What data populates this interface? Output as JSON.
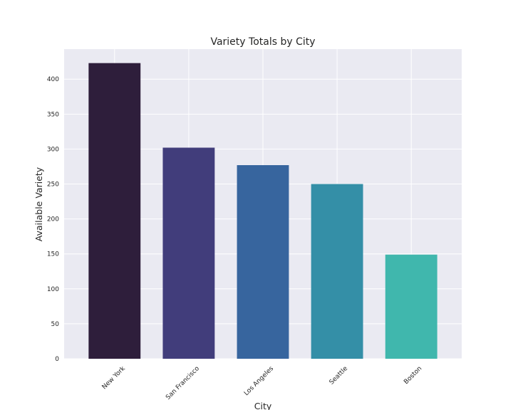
{
  "chart_data": {
    "type": "bar",
    "title": "Variety Totals by City",
    "xlabel": "City",
    "ylabel": "Available Variety",
    "categories": [
      "New York",
      "San Francisco",
      "Los Angeles",
      "Seattle",
      "Boston"
    ],
    "values": [
      423,
      302,
      277,
      250,
      149
    ],
    "ylim": [
      0,
      443
    ],
    "yticks": [
      0,
      50,
      100,
      150,
      200,
      250,
      300,
      350,
      400
    ],
    "colors": [
      "#2e1e3b",
      "#413d7b",
      "#37659e",
      "#348fa7",
      "#40b7ad"
    ],
    "grid": true,
    "background": "#eaeaf2"
  }
}
